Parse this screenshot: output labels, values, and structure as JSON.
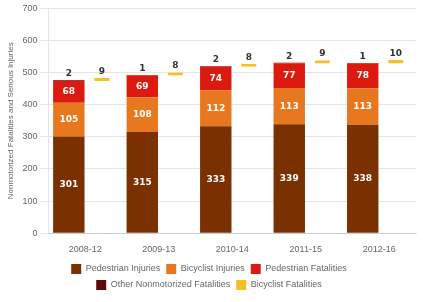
{
  "chart_data": {
    "type": "bar",
    "categories": [
      "2008-12",
      "2009-13",
      "2010-14",
      "2011-15",
      "2012-16"
    ],
    "series": [
      {
        "name": "Pedestrian Injuries",
        "color": "#7B3000",
        "values": [
          301,
          315,
          333,
          339,
          338
        ]
      },
      {
        "name": "Bicyclist Injuries",
        "color": "#E87820",
        "values": [
          105,
          108,
          112,
          113,
          113
        ]
      },
      {
        "name": "Pedestrian Fatalities",
        "color": "#DD1A10",
        "values": [
          68,
          69,
          74,
          77,
          78
        ]
      },
      {
        "name": "Other Nonmotorized Fatalities",
        "color": "#5A0A0A",
        "values": [
          2,
          1,
          2,
          2,
          1
        ]
      },
      {
        "name": "Bicyclist Fatalities",
        "color": "#F5C020",
        "values": [
          9,
          8,
          8,
          9,
          10
        ]
      }
    ],
    "ylabel": "Nonmotorized Fatalities and Serious Injuries",
    "ylim": [
      0,
      700
    ],
    "yticks": [
      0,
      100,
      200,
      300,
      400,
      500,
      600,
      700
    ],
    "stacked": true,
    "grid": true,
    "legend": "bottom",
    "data_labels": true
  }
}
